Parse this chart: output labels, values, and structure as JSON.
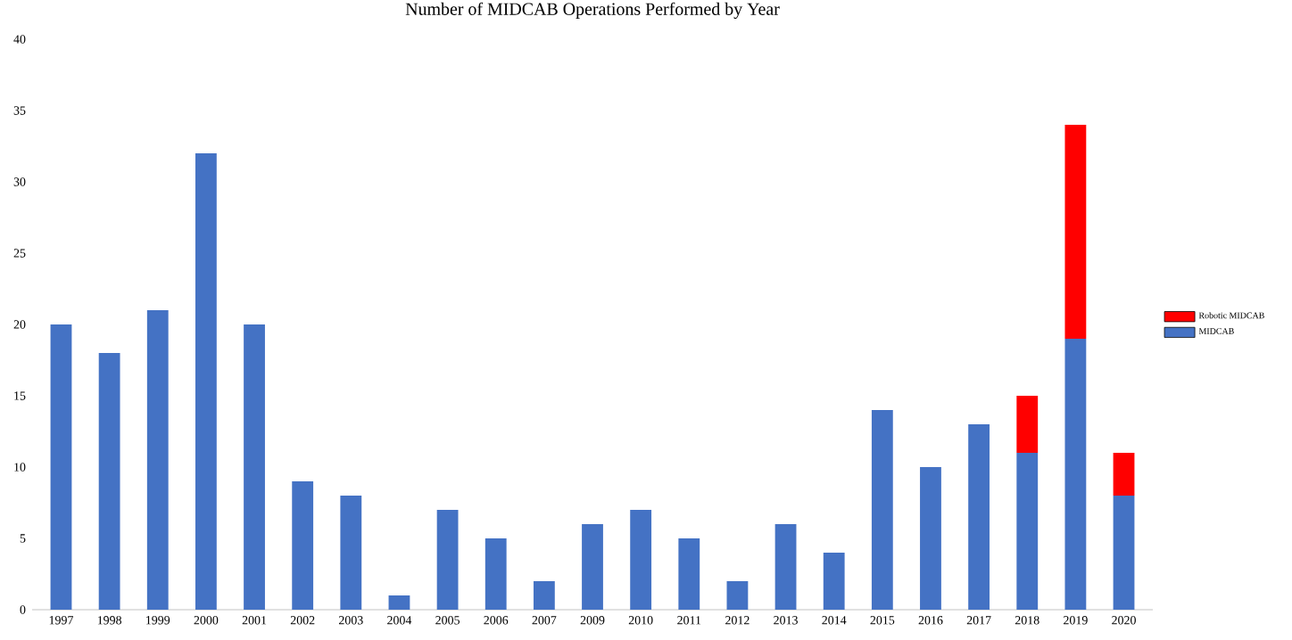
{
  "chart_data": {
    "type": "bar",
    "title": "Number of MIDCAB Operations Performed by Year",
    "stacked": true,
    "categories": [
      "1997",
      "1998",
      "1999",
      "2000",
      "2001",
      "2002",
      "2003",
      "2004",
      "2005",
      "2006",
      "2007",
      "2009",
      "2010",
      "2011",
      "2012",
      "2013",
      "2014",
      "2015",
      "2016",
      "2017",
      "2018",
      "2019",
      "2020"
    ],
    "series": [
      {
        "name": "MIDCAB",
        "color": "#4472c4",
        "values": [
          20,
          18,
          21,
          32,
          20,
          9,
          8,
          1,
          7,
          5,
          2,
          6,
          7,
          5,
          2,
          6,
          4,
          14,
          10,
          13,
          11,
          19,
          8
        ]
      },
      {
        "name": "Robotic MIDCAB",
        "color": "#ff0000",
        "values": [
          null,
          null,
          null,
          null,
          null,
          null,
          null,
          null,
          null,
          null,
          null,
          null,
          null,
          null,
          null,
          null,
          null,
          null,
          null,
          null,
          4,
          15,
          3
        ]
      }
    ],
    "ylim": [
      0,
      40
    ],
    "yticks": [
      0,
      5,
      10,
      15,
      20,
      25,
      30,
      35,
      40
    ],
    "grid": false,
    "legend": "right"
  }
}
